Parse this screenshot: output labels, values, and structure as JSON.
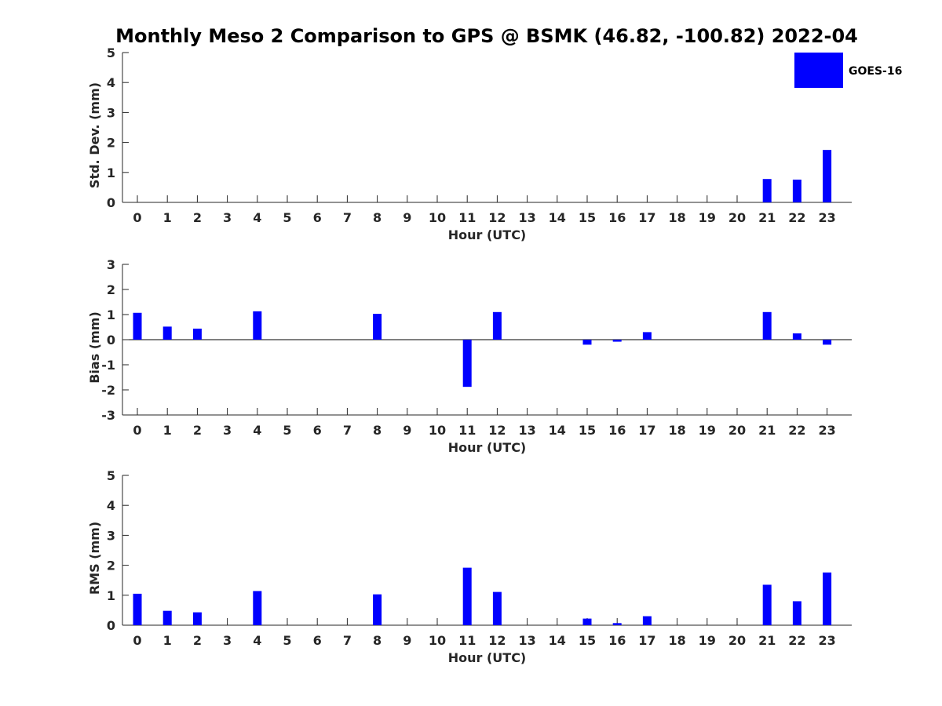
{
  "title": "Monthly Meso 2 Comparison to GPS @ BSMK (46.82, -100.82) 2022-04",
  "legend": {
    "label": "GOES-16",
    "color": "#0000ff",
    "placement": "top-right"
  },
  "chart_data": [
    {
      "type": "bar",
      "name": "stddev",
      "xlabel": "Hour (UTC)",
      "ylabel": "Std. Dev. (mm)",
      "ylim": [
        0,
        5
      ],
      "yticks": [
        0,
        1,
        2,
        3,
        4,
        5
      ],
      "categories": [
        "0",
        "1",
        "2",
        "3",
        "4",
        "5",
        "6",
        "7",
        "8",
        "9",
        "10",
        "11",
        "12",
        "13",
        "14",
        "15",
        "16",
        "17",
        "18",
        "19",
        "20",
        "21",
        "22",
        "23"
      ],
      "series": [
        {
          "name": "GOES-16",
          "color": "#0000ff",
          "values": [
            0,
            0,
            0,
            0,
            0,
            0,
            0,
            0,
            0,
            0,
            0,
            0,
            0,
            0,
            0,
            0,
            0,
            0,
            0,
            0,
            0,
            0.78,
            0.76,
            1.75
          ]
        }
      ],
      "grid": false
    },
    {
      "type": "bar",
      "name": "bias",
      "xlabel": "Hour (UTC)",
      "ylabel": "Bias (mm)",
      "ylim": [
        -3,
        3
      ],
      "yticks": [
        -3,
        -2,
        -1,
        0,
        1,
        2,
        3
      ],
      "categories": [
        "0",
        "1",
        "2",
        "3",
        "4",
        "5",
        "6",
        "7",
        "8",
        "9",
        "10",
        "11",
        "12",
        "13",
        "14",
        "15",
        "16",
        "17",
        "18",
        "19",
        "20",
        "21",
        "22",
        "23"
      ],
      "series": [
        {
          "name": "GOES-16",
          "color": "#0000ff",
          "values": [
            1.07,
            0.52,
            0.44,
            0,
            1.13,
            0,
            0,
            0,
            1.03,
            0,
            0,
            -1.88,
            1.1,
            0,
            0,
            -0.2,
            -0.08,
            0.3,
            0,
            0,
            0,
            1.1,
            0.25,
            -0.2
          ]
        }
      ],
      "grid": false
    },
    {
      "type": "bar",
      "name": "rms",
      "xlabel": "Hour (UTC)",
      "ylabel": "RMS (mm)",
      "ylim": [
        0,
        5
      ],
      "yticks": [
        0,
        1,
        2,
        3,
        4,
        5
      ],
      "categories": [
        "0",
        "1",
        "2",
        "3",
        "4",
        "5",
        "6",
        "7",
        "8",
        "9",
        "10",
        "11",
        "12",
        "13",
        "14",
        "15",
        "16",
        "17",
        "18",
        "19",
        "20",
        "21",
        "22",
        "23"
      ],
      "series": [
        {
          "name": "GOES-16",
          "color": "#0000ff",
          "values": [
            1.05,
            0.48,
            0.43,
            0,
            1.14,
            0,
            0,
            0,
            1.03,
            0,
            0,
            1.92,
            1.11,
            0,
            0,
            0.22,
            0.07,
            0.3,
            0,
            0,
            0,
            1.35,
            0.8,
            1.76
          ]
        }
      ],
      "grid": false
    }
  ]
}
